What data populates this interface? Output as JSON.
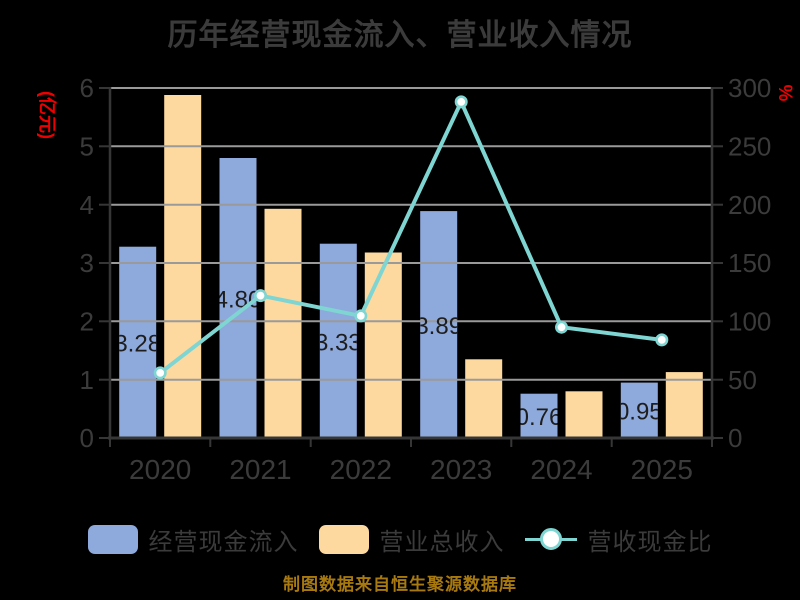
{
  "title": "历年经营现金流入、营业收入情况",
  "left_axis": {
    "unit": "(亿元)",
    "ticks": [
      0,
      1,
      2,
      3,
      4,
      5,
      6
    ]
  },
  "right_axis": {
    "unit": "%",
    "ticks": [
      0,
      50,
      100,
      150,
      200,
      250,
      300
    ]
  },
  "footer": {
    "text": "制图数据来自恒生聚源数据库"
  },
  "colors": {
    "background": "#000000",
    "text_gray": "#3b3b3b",
    "bar_label": "#1e1e1e",
    "cash_blue": "#8ea9db",
    "revenue_orange": "#fdd9a0",
    "ratio_teal": "#7ed5d2",
    "marker_fill": "#ffffff",
    "gridline": "#9a9a9a",
    "axis_line": "#363636",
    "unit_red": "#ee0000",
    "credit_gold": "#a8790f"
  },
  "legend": {
    "items": [
      {
        "label": "经营现金流入"
      },
      {
        "label": "营业总收入"
      },
      {
        "label": "营收现金比"
      }
    ]
  },
  "chart_data": {
    "type": "bar",
    "subtype": "grouped bars + line on secondary axis",
    "title": "历年经营现金流入、营业收入情况",
    "categories": [
      "2020",
      "2021",
      "2022",
      "2023",
      "2024",
      "2025"
    ],
    "series": [
      {
        "name": "经营现金流入",
        "type": "bar",
        "axis": "left",
        "color": "#8ea9db",
        "values": [
          3.28,
          4.8,
          3.33,
          3.89,
          0.76,
          0.95
        ],
        "data_labels": [
          "3.28",
          "4.80",
          "3.33",
          "3.89",
          "0.76",
          "0.95"
        ]
      },
      {
        "name": "营业总收入",
        "type": "bar",
        "axis": "left",
        "color": "#fdd9a0",
        "values": [
          5.88,
          3.93,
          3.18,
          1.35,
          0.8,
          1.13
        ],
        "data_labels": []
      },
      {
        "name": "营收现金比",
        "type": "line",
        "axis": "right",
        "color": "#7ed5d2",
        "values": [
          55.8,
          122.1,
          104.7,
          288.1,
          95.0,
          84.1
        ],
        "unit": "%"
      }
    ],
    "left_ylabel": "(亿元)",
    "right_ylabel": "%",
    "left_ylim": [
      0,
      6
    ],
    "right_ylim": [
      0,
      300
    ],
    "grid": true,
    "legend_position": "bottom"
  }
}
